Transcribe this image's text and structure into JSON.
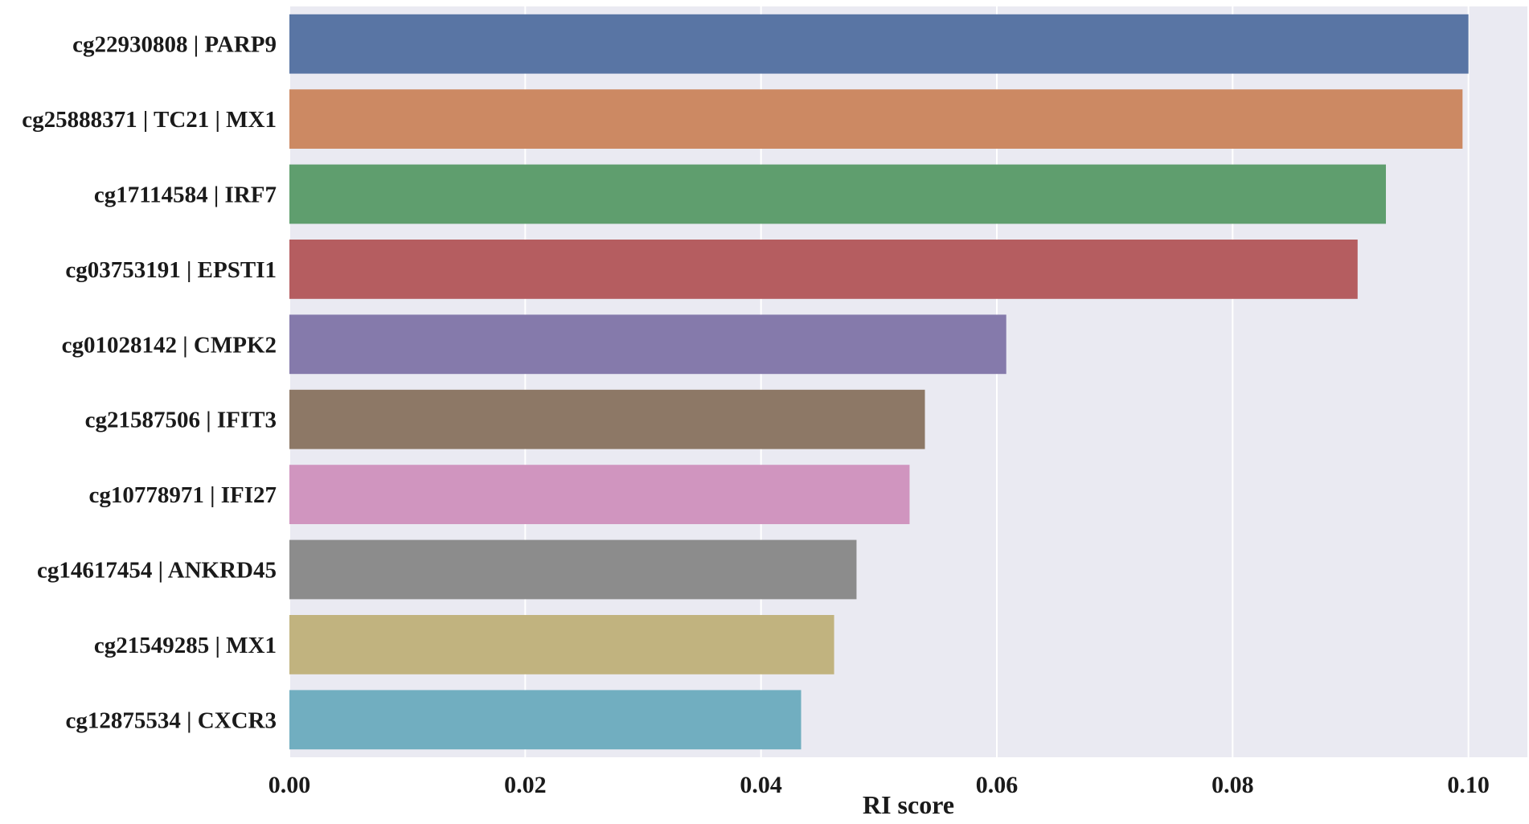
{
  "chart_data": {
    "type": "bar",
    "orientation": "horizontal",
    "categories": [
      "cg22930808 | PARP9",
      "cg25888371 | TC21 | MX1",
      "cg17114584 | IRF7",
      "cg03753191 | EPSTI1",
      "cg01028142 | CMPK2",
      "cg21587506 | IFIT3",
      "cg10778971 | IFI27",
      "cg14617454 | ANKRD45",
      "cg21549285 | MX1",
      "cg12875534 | CXCR3"
    ],
    "values": [
      0.1,
      0.0995,
      0.093,
      0.0906,
      0.0608,
      0.0539,
      0.0526,
      0.0481,
      0.0462,
      0.0434
    ],
    "colors": [
      "#5975a4",
      "#cc8963",
      "#5f9e6e",
      "#b55d60",
      "#857aab",
      "#8d7866",
      "#d095bf",
      "#8c8c8c",
      "#c1b37f",
      "#71aec0"
    ],
    "title": "",
    "xlabel": "RI score",
    "ylabel": "",
    "xlim": [
      0,
      0.105
    ],
    "xticks": [
      0.0,
      0.02,
      0.04,
      0.06,
      0.08,
      0.1
    ],
    "xtick_labels": [
      "0.00",
      "0.02",
      "0.04",
      "0.06",
      "0.08",
      "0.10"
    ],
    "grid": true,
    "legend": "none",
    "background_color": "#eaeaf2",
    "grid_color": "#ffffff"
  }
}
